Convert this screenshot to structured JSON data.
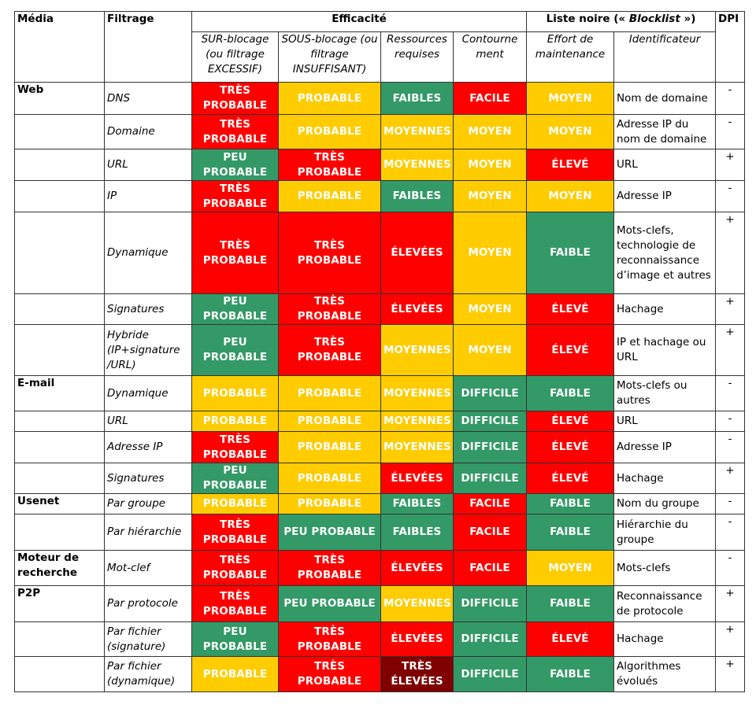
{
  "colors": {
    "red": "#ff0000",
    "yellow": "#ffcc00",
    "green": "#339966",
    "darkred": "#800000"
  },
  "header": {
    "media": "Média",
    "filtrage": "Filtrage",
    "efficacite": "Efficacité",
    "liste_noire_prefix": "Liste noire (« ",
    "liste_noire_em": "Blocklist",
    "liste_noire_suffix": " »)",
    "dpi": "DPI",
    "sub": {
      "sur_blocage": "SUR-blocage (ou filtrage EXCESSIF)",
      "sous_blocage": "SOUS-blocage (ou filtrage INSUFFISANT)",
      "ressources": "Ressources requises",
      "contournement": "Contourne ment",
      "effort": "Effort de maintenance",
      "identificateur": "Identificateur"
    }
  },
  "rows": [
    {
      "media": "Web",
      "filtrage": "DNS",
      "sur": {
        "text": "TRÈS PROBABLE",
        "color": "red"
      },
      "sous": {
        "text": "PROBABLE",
        "color": "yellow"
      },
      "ressources": {
        "text": "FAIBLES",
        "color": "green"
      },
      "contournement": {
        "text": "FACILE",
        "color": "red"
      },
      "effort": {
        "text": "MOYEN",
        "color": "yellow"
      },
      "identificateur": "Nom de domaine",
      "dpi": "-"
    },
    {
      "media": "",
      "filtrage": "Domaine",
      "sur": {
        "text": "TRÈS PROBABLE",
        "color": "red"
      },
      "sous": {
        "text": "PROBABLE",
        "color": "yellow"
      },
      "ressources": {
        "text": "MOYENNES",
        "color": "yellow"
      },
      "contournement": {
        "text": "MOYEN",
        "color": "yellow"
      },
      "effort": {
        "text": "MOYEN",
        "color": "yellow"
      },
      "identificateur": "Adresse IP du nom de domaine",
      "dpi": "-"
    },
    {
      "media": "",
      "filtrage": "URL",
      "sur": {
        "text": "PEU PROBABLE",
        "color": "green"
      },
      "sous": {
        "text": "TRÈS PROBABLE",
        "color": "red"
      },
      "ressources": {
        "text": "MOYENNES",
        "color": "yellow"
      },
      "contournement": {
        "text": "MOYEN",
        "color": "yellow"
      },
      "effort": {
        "text": "ÉLEVÉ",
        "color": "red"
      },
      "identificateur": "URL",
      "dpi": "+"
    },
    {
      "media": "",
      "filtrage": "IP",
      "sur": {
        "text": "TRÈS PROBABLE",
        "color": "red"
      },
      "sous": {
        "text": "PROBABLE",
        "color": "yellow"
      },
      "ressources": {
        "text": "FAIBLES",
        "color": "green"
      },
      "contournement": {
        "text": "MOYEN",
        "color": "yellow"
      },
      "effort": {
        "text": "MOYEN",
        "color": "yellow"
      },
      "identificateur": "Adresse IP",
      "dpi": "-"
    },
    {
      "media": "",
      "filtrage": "Dynamique",
      "sur": {
        "text": "TRÈS PROBABLE",
        "color": "red"
      },
      "sous": {
        "text": "TRÈS PROBABLE",
        "color": "red"
      },
      "ressources": {
        "text": "ÉLEVÉES",
        "color": "red"
      },
      "contournement": {
        "text": "MOYEN",
        "color": "yellow"
      },
      "effort": {
        "text": "FAIBLE",
        "color": "green"
      },
      "identificateur": "Mots-clefs, technologie de reconnaissance d’image et autres",
      "dpi": "+"
    },
    {
      "media": "",
      "filtrage": "Signatures",
      "sur": {
        "text": "PEU PROBABLE",
        "color": "green"
      },
      "sous": {
        "text": "TRÈS PROBABLE",
        "color": "red"
      },
      "ressources": {
        "text": "ÉLEVÉES",
        "color": "red"
      },
      "contournement": {
        "text": "MOYEN",
        "color": "yellow"
      },
      "effort": {
        "text": "ÉLEVÉ",
        "color": "red"
      },
      "identificateur": "Hachage",
      "dpi": "+"
    },
    {
      "media": "",
      "filtrage": "Hybride (IP+signature /URL)",
      "sur": {
        "text": "PEU PROBABLE",
        "color": "green"
      },
      "sous": {
        "text": "TRÈS PROBABLE",
        "color": "red"
      },
      "ressources": {
        "text": "MOYENNES",
        "color": "yellow"
      },
      "contournement": {
        "text": "MOYEN",
        "color": "yellow"
      },
      "effort": {
        "text": "ÉLEVÉ",
        "color": "red"
      },
      "identificateur": "IP et hachage ou URL",
      "dpi": "+"
    },
    {
      "media": "E-mail",
      "filtrage": "Dynamique",
      "sur": {
        "text": "PROBABLE",
        "color": "yellow"
      },
      "sous": {
        "text": "PROBABLE",
        "color": "yellow"
      },
      "ressources": {
        "text": "MOYENNES",
        "color": "yellow"
      },
      "contournement": {
        "text": "DIFFICILE",
        "color": "green"
      },
      "effort": {
        "text": "FAIBLE",
        "color": "green"
      },
      "identificateur": "Mots-clefs ou autres",
      "dpi": "-"
    },
    {
      "media": "",
      "filtrage": "URL",
      "sur": {
        "text": "PROBABLE",
        "color": "yellow"
      },
      "sous": {
        "text": "PROBABLE",
        "color": "yellow"
      },
      "ressources": {
        "text": "MOYENNES",
        "color": "yellow"
      },
      "contournement": {
        "text": "DIFFICILE",
        "color": "green"
      },
      "effort": {
        "text": "ÉLEVÉ",
        "color": "red"
      },
      "identificateur": "URL",
      "dpi": "-"
    },
    {
      "media": "",
      "filtrage": "Adresse IP",
      "sur": {
        "text": "TRÈS PROBABLE",
        "color": "red"
      },
      "sous": {
        "text": "PROBABLE",
        "color": "yellow"
      },
      "ressources": {
        "text": "MOYENNES",
        "color": "yellow"
      },
      "contournement": {
        "text": "DIFFICILE",
        "color": "green"
      },
      "effort": {
        "text": "ÉLEVÉ",
        "color": "red"
      },
      "identificateur": "Adresse IP",
      "dpi": "-"
    },
    {
      "media": "",
      "filtrage": "Signatures",
      "sur": {
        "text": "PEU PROBABLE",
        "color": "green"
      },
      "sous": {
        "text": "PROBABLE",
        "color": "yellow"
      },
      "ressources": {
        "text": "ÉLEVÉES",
        "color": "red"
      },
      "contournement": {
        "text": "DIFFICILE",
        "color": "green"
      },
      "effort": {
        "text": "ÉLEVÉ",
        "color": "red"
      },
      "identificateur": "Hachage",
      "dpi": "+"
    },
    {
      "media": "Usenet",
      "filtrage": "Par groupe",
      "sur": {
        "text": "PROBABLE",
        "color": "yellow"
      },
      "sous": {
        "text": "PROBABLE",
        "color": "yellow"
      },
      "ressources": {
        "text": "FAIBLES",
        "color": "green"
      },
      "contournement": {
        "text": "FACILE",
        "color": "red"
      },
      "effort": {
        "text": "FAIBLE",
        "color": "green"
      },
      "identificateur": "Nom du groupe",
      "dpi": "-"
    },
    {
      "media": "",
      "filtrage": "Par hiérarchie",
      "sur": {
        "text": "TRÈS PROBABLE",
        "color": "red"
      },
      "sous": {
        "text": "PEU PROBABLE",
        "color": "green"
      },
      "ressources": {
        "text": "FAIBLES",
        "color": "green"
      },
      "contournement": {
        "text": "FACILE",
        "color": "red"
      },
      "effort": {
        "text": "FAIBLE",
        "color": "green"
      },
      "identificateur": "Hiérarchie du groupe",
      "dpi": "-"
    },
    {
      "media": "Moteur de recherche",
      "filtrage": "Mot-clef",
      "sur": {
        "text": "TRÈS PROBABLE",
        "color": "red"
      },
      "sous": {
        "text": "TRÈS PROBABLE",
        "color": "red"
      },
      "ressources": {
        "text": "ÉLEVÉES",
        "color": "red"
      },
      "contournement": {
        "text": "FACILE",
        "color": "red"
      },
      "effort": {
        "text": "MOYEN",
        "color": "yellow"
      },
      "identificateur": "Mots-clefs",
      "dpi": "-"
    },
    {
      "media": "P2P",
      "filtrage": "Par protocole",
      "sur": {
        "text": "TRÈS PROBABLE",
        "color": "red"
      },
      "sous": {
        "text": "PEU PROBABLE",
        "color": "green"
      },
      "ressources": {
        "text": "MOYENNES",
        "color": "yellow"
      },
      "contournement": {
        "text": "DIFFICILE",
        "color": "green"
      },
      "effort": {
        "text": "FAIBLE",
        "color": "green"
      },
      "identificateur": "Reconnaissance de protocole",
      "dpi": "+"
    },
    {
      "media": "",
      "filtrage": "Par fichier (signature)",
      "sur": {
        "text": "PEU PROBABLE",
        "color": "green"
      },
      "sous": {
        "text": "TRÈS PROBABLE",
        "color": "red"
      },
      "ressources": {
        "text": "ÉLEVÉES",
        "color": "red"
      },
      "contournement": {
        "text": "DIFFICILE",
        "color": "green"
      },
      "effort": {
        "text": "ÉLEVÉ",
        "color": "red"
      },
      "identificateur": "Hachage",
      "dpi": "+"
    },
    {
      "media": "",
      "filtrage": "Par fichier (dynamique)",
      "sur": {
        "text": "PROBABLE",
        "color": "yellow"
      },
      "sous": {
        "text": "TRÈS PROBABLE",
        "color": "red"
      },
      "ressources": {
        "text": "TRÈS ÉLEVÉES",
        "color": "darkred"
      },
      "contournement": {
        "text": "DIFFICILE",
        "color": "green"
      },
      "effort": {
        "text": "FAIBLE",
        "color": "green"
      },
      "identificateur": "Algorithmes évolués",
      "dpi": "+"
    }
  ]
}
